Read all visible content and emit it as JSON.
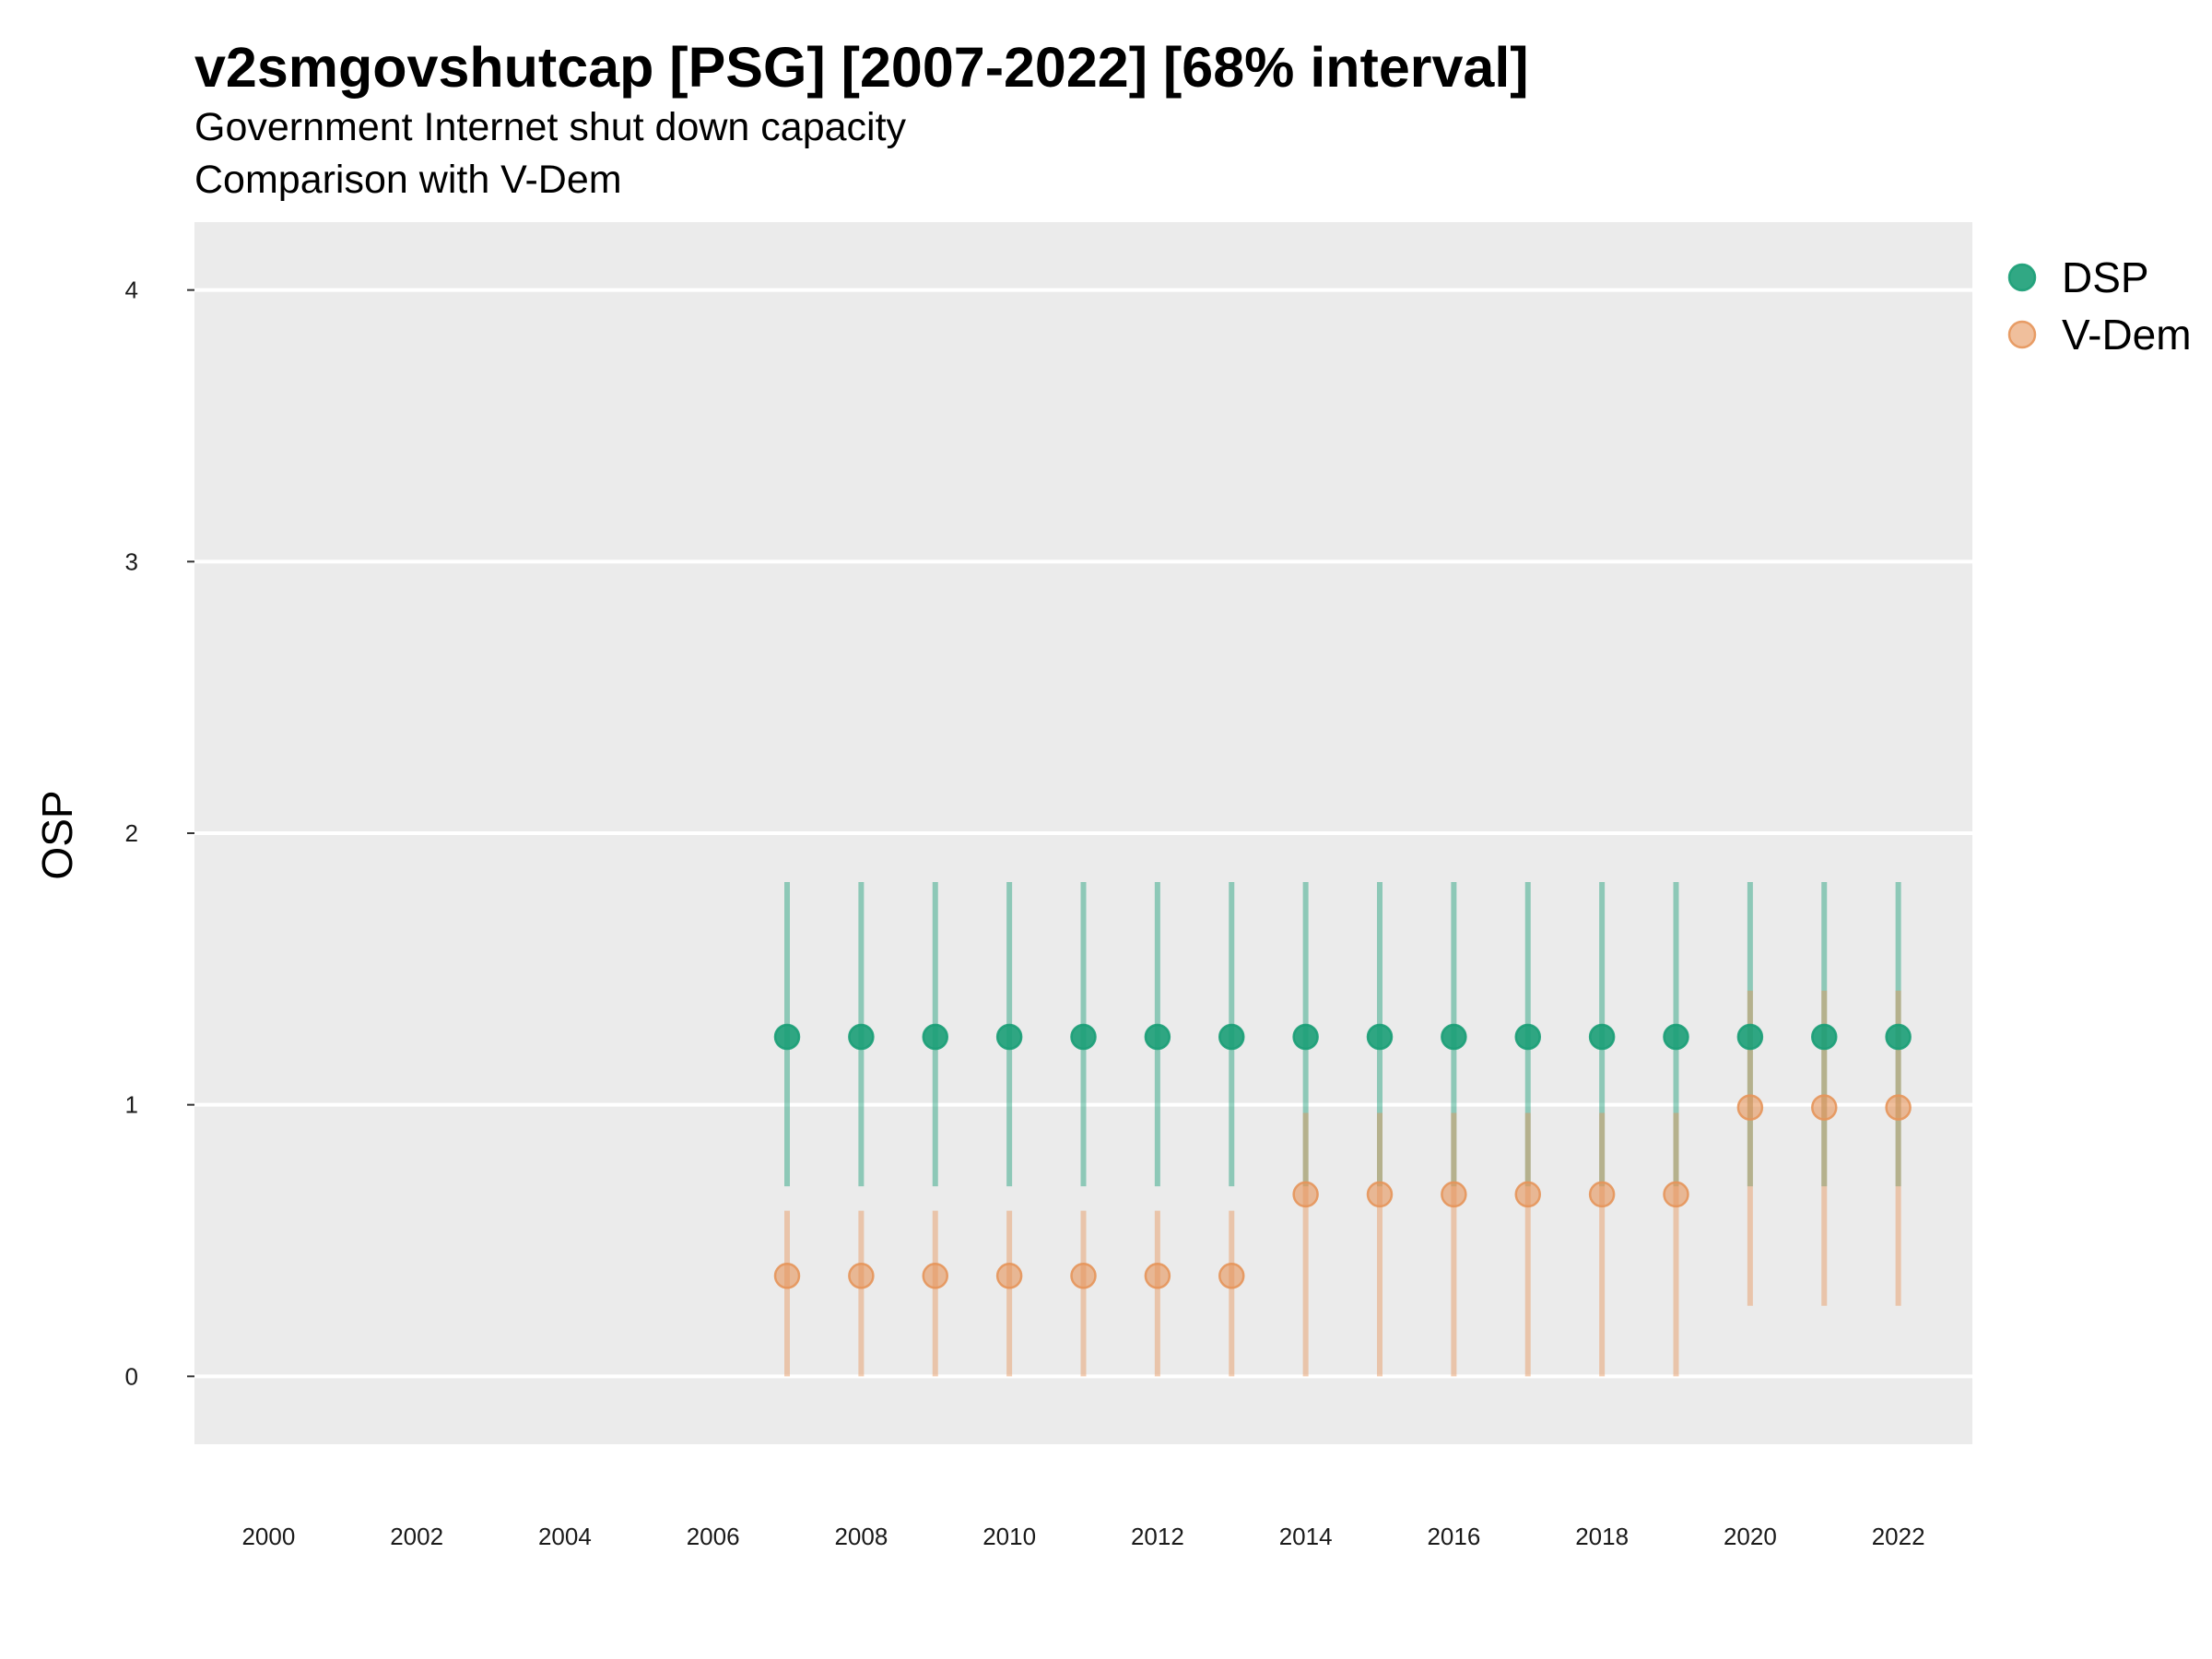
{
  "chart_data": {
    "type": "scatter",
    "title": "v2smgovshutcap [PSG] [2007-2022] [68% interval]",
    "subtitle": [
      "Government Internet shut down capacity",
      "Comparison with V-Dem"
    ],
    "xlabel": "",
    "ylabel": "OSP",
    "xlim": [
      1999,
      2023
    ],
    "ylim": [
      -0.25,
      4.25
    ],
    "x_ticks": [
      2000,
      2002,
      2004,
      2006,
      2008,
      2010,
      2012,
      2014,
      2016,
      2018,
      2020,
      2022
    ],
    "y_ticks": [
      0,
      1,
      2,
      3,
      4
    ],
    "grid": true,
    "legend_position": "right",
    "series": [
      {
        "name": "DSP",
        "color": "#1B9E77",
        "x": [
          2007,
          2008,
          2009,
          2010,
          2011,
          2012,
          2013,
          2014,
          2015,
          2016,
          2017,
          2018,
          2019,
          2020,
          2021,
          2022
        ],
        "y": [
          1.25,
          1.25,
          1.25,
          1.25,
          1.25,
          1.25,
          1.25,
          1.25,
          1.25,
          1.25,
          1.25,
          1.25,
          1.25,
          1.25,
          1.25,
          1.25
        ],
        "lower": [
          0.7,
          0.7,
          0.7,
          0.7,
          0.7,
          0.7,
          0.7,
          0.7,
          0.7,
          0.7,
          0.7,
          0.7,
          0.7,
          0.7,
          0.7,
          0.7
        ],
        "upper": [
          1.82,
          1.82,
          1.82,
          1.82,
          1.82,
          1.82,
          1.82,
          1.82,
          1.82,
          1.82,
          1.82,
          1.82,
          1.82,
          1.82,
          1.82,
          1.82
        ]
      },
      {
        "name": "V-Dem",
        "color": "#E6955A",
        "x": [
          2007,
          2008,
          2009,
          2010,
          2011,
          2012,
          2013,
          2014,
          2015,
          2016,
          2017,
          2018,
          2019,
          2020,
          2021,
          2022
        ],
        "y": [
          0.37,
          0.37,
          0.37,
          0.37,
          0.37,
          0.37,
          0.37,
          0.67,
          0.67,
          0.67,
          0.67,
          0.67,
          0.67,
          0.99,
          0.99,
          0.99
        ],
        "lower": [
          0.0,
          0.0,
          0.0,
          0.0,
          0.0,
          0.0,
          0.0,
          0.0,
          0.0,
          0.0,
          0.0,
          0.0,
          0.0,
          0.26,
          0.26,
          0.26
        ],
        "upper": [
          0.61,
          0.61,
          0.61,
          0.61,
          0.61,
          0.61,
          0.61,
          0.97,
          0.97,
          0.97,
          0.97,
          0.97,
          0.97,
          1.42,
          1.42,
          1.42
        ]
      }
    ]
  }
}
